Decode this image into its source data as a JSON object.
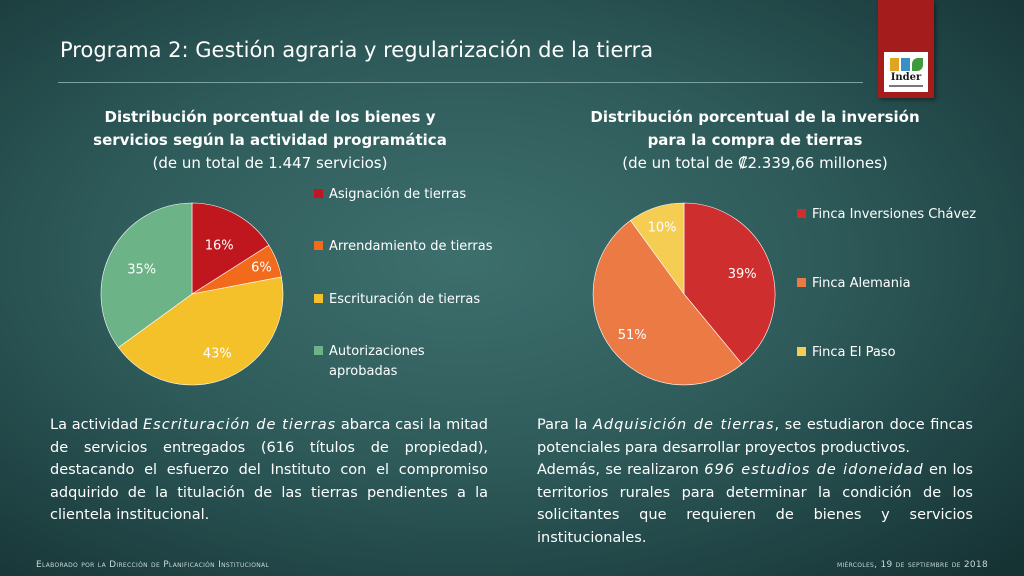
{
  "slide": {
    "title": "Programa 2: Gestión agraria y regularización de la tierra",
    "logo_text": "Inder",
    "footer_left": "Elaborado por la Dirección de Planificación Institucional",
    "footer_right": "miércoles, 19 de septiembre de 2018"
  },
  "left": {
    "title_l1": "Distribución porcentual de los bienes y",
    "title_l2": "servicios según la actividad programática",
    "title_l3": "(de un total de 1.447 servicios)",
    "para_p1": "La actividad ",
    "para_em": "Escrituración de tierras",
    "para_p2": " abarca casi la mitad de servicios entregados (616 títulos de propiedad), destacando el esfuerzo del Instituto con el compromiso adquirido de la titulación de las tierras pendientes a la clientela institucional."
  },
  "right": {
    "title_l1": "Distribución porcentual de la inversión",
    "title_l2": "para  la compra de tierras",
    "title_l3": "(de un total de ₡2.339,66 millones)",
    "para1_p1": "Para la ",
    "para1_em": "Adquisición de tierras",
    "para1_p2": ", se estudiaron doce fincas potenciales para desarrollar proyectos productivos.",
    "para2_p1": "Además, se realizaron ",
    "para2_em": "696 estudios de idoneidad",
    "para2_p2": " en los territorios rurales para determinar la condición de los solicitantes que requieren de bienes y servicios institucionales."
  },
  "chart_data": [
    {
      "type": "pie",
      "title": "Distribución porcentual de los bienes y servicios según la actividad programática (de un total de 1.447 servicios)",
      "categories": [
        "Asignación de tierras",
        "Arrendamiento de tierras",
        "Escrituración de tierras",
        "Autorizaciones aprobadas"
      ],
      "values": [
        16,
        6,
        43,
        35
      ],
      "labels": [
        "16%",
        "6%",
        "43%",
        "35%"
      ],
      "colors": [
        "#c0161d",
        "#f26b1d",
        "#f5c12a",
        "#6db388"
      ],
      "label_colors": [
        "#ffffff",
        "#ffffff",
        "#ffffff",
        "#ffffff"
      ],
      "legend": "right"
    },
    {
      "type": "pie",
      "title": "Distribución porcentual de la inversión para la compra de tierras (de un total de ₡2.339,66 millones)",
      "categories": [
        "Finca Inversiones Chávez",
        "Finca Alemania",
        "Finca El Paso"
      ],
      "values": [
        39,
        51,
        10
      ],
      "labels": [
        "39%",
        "51%",
        "10%"
      ],
      "colors": [
        "#cf2e2e",
        "#ec7a45",
        "#f5cd52"
      ],
      "label_colors": [
        "#ffffff",
        "#ffffff",
        "#ffffff"
      ],
      "legend": "right"
    }
  ]
}
